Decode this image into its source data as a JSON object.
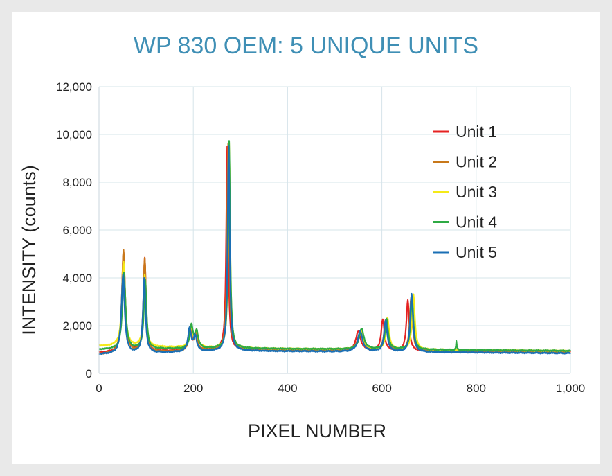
{
  "chart_data": {
    "type": "line",
    "title": "WP 830 OEM: 5 UNIQUE UNITS",
    "xlabel": "PIXEL NUMBER",
    "ylabel": "INTENSITY (counts)",
    "xlim": [
      0,
      1000
    ],
    "ylim": [
      0,
      12000
    ],
    "xticks": [
      0,
      200,
      400,
      600,
      800,
      1000
    ],
    "xtick_labels": [
      "0",
      "200",
      "400",
      "600",
      "800",
      "1,000"
    ],
    "yticks": [
      0,
      2000,
      4000,
      6000,
      8000,
      10000,
      12000
    ],
    "ytick_labels": [
      "0",
      "2,000",
      "4,000",
      "6,000",
      "8,000",
      "10,000",
      "12,000"
    ],
    "grid": true,
    "legend_position": "top-right",
    "series": [
      {
        "name": "Unit 1",
        "color": "#e52222",
        "baseline_start": 850,
        "baseline_mid": 1000,
        "baseline_end": 900,
        "peaks": [
          [
            52,
            4200,
            4
          ],
          [
            97,
            3900,
            3.2
          ],
          [
            193,
            900,
            4
          ],
          [
            205,
            600,
            4
          ],
          [
            272,
            8500,
            2.5
          ],
          [
            550,
            800,
            6
          ],
          [
            602,
            1300,
            4
          ],
          [
            655,
            2100,
            3.5
          ]
        ]
      },
      {
        "name": "Unit 2",
        "color": "#c8781a",
        "baseline_start": 800,
        "baseline_mid": 1000,
        "baseline_end": 900,
        "peaks": [
          [
            52,
            4300,
            4
          ],
          [
            97,
            3950,
            3.2
          ],
          [
            194,
            900,
            4
          ],
          [
            206,
            650,
            4
          ],
          [
            274,
            8600,
            2.5
          ],
          [
            554,
            800,
            6
          ],
          [
            608,
            1300,
            4
          ],
          [
            662,
            2200,
            3.5
          ]
        ]
      },
      {
        "name": "Unit 3",
        "color": "#f5ea18",
        "baseline_start": 1150,
        "baseline_mid": 1050,
        "baseline_end": 950,
        "peaks": [
          [
            52,
            3550,
            4
          ],
          [
            97,
            3000,
            3.2
          ],
          [
            195,
            900,
            4
          ],
          [
            207,
            650,
            4
          ],
          [
            276,
            8600,
            2.5
          ],
          [
            556,
            800,
            6
          ],
          [
            612,
            1300,
            4
          ],
          [
            667,
            2300,
            3.5
          ]
        ]
      },
      {
        "name": "Unit 4",
        "color": "#2eaa44",
        "baseline_start": 1000,
        "baseline_mid": 1050,
        "baseline_end": 950,
        "peaks": [
          [
            53,
            3200,
            4
          ],
          [
            98,
            2900,
            3.2
          ],
          [
            196,
            950,
            4
          ],
          [
            207,
            700,
            4
          ],
          [
            276,
            8700,
            2.5
          ],
          [
            557,
            850,
            6
          ],
          [
            610,
            1250,
            4
          ],
          [
            664,
            2150,
            3.5
          ],
          [
            758,
            350,
            1
          ]
        ]
      },
      {
        "name": "Unit 5",
        "color": "#1a6fb5",
        "baseline_start": 800,
        "baseline_mid": 950,
        "baseline_end": 850,
        "peaks": [
          [
            51,
            3300,
            4
          ],
          [
            96,
            3100,
            3.2
          ],
          [
            192,
            950,
            4
          ],
          [
            204,
            650,
            4
          ],
          [
            275,
            8600,
            2.5
          ],
          [
            554,
            850,
            6
          ],
          [
            608,
            1300,
            4
          ],
          [
            663,
            2450,
            3.5
          ]
        ]
      }
    ]
  }
}
